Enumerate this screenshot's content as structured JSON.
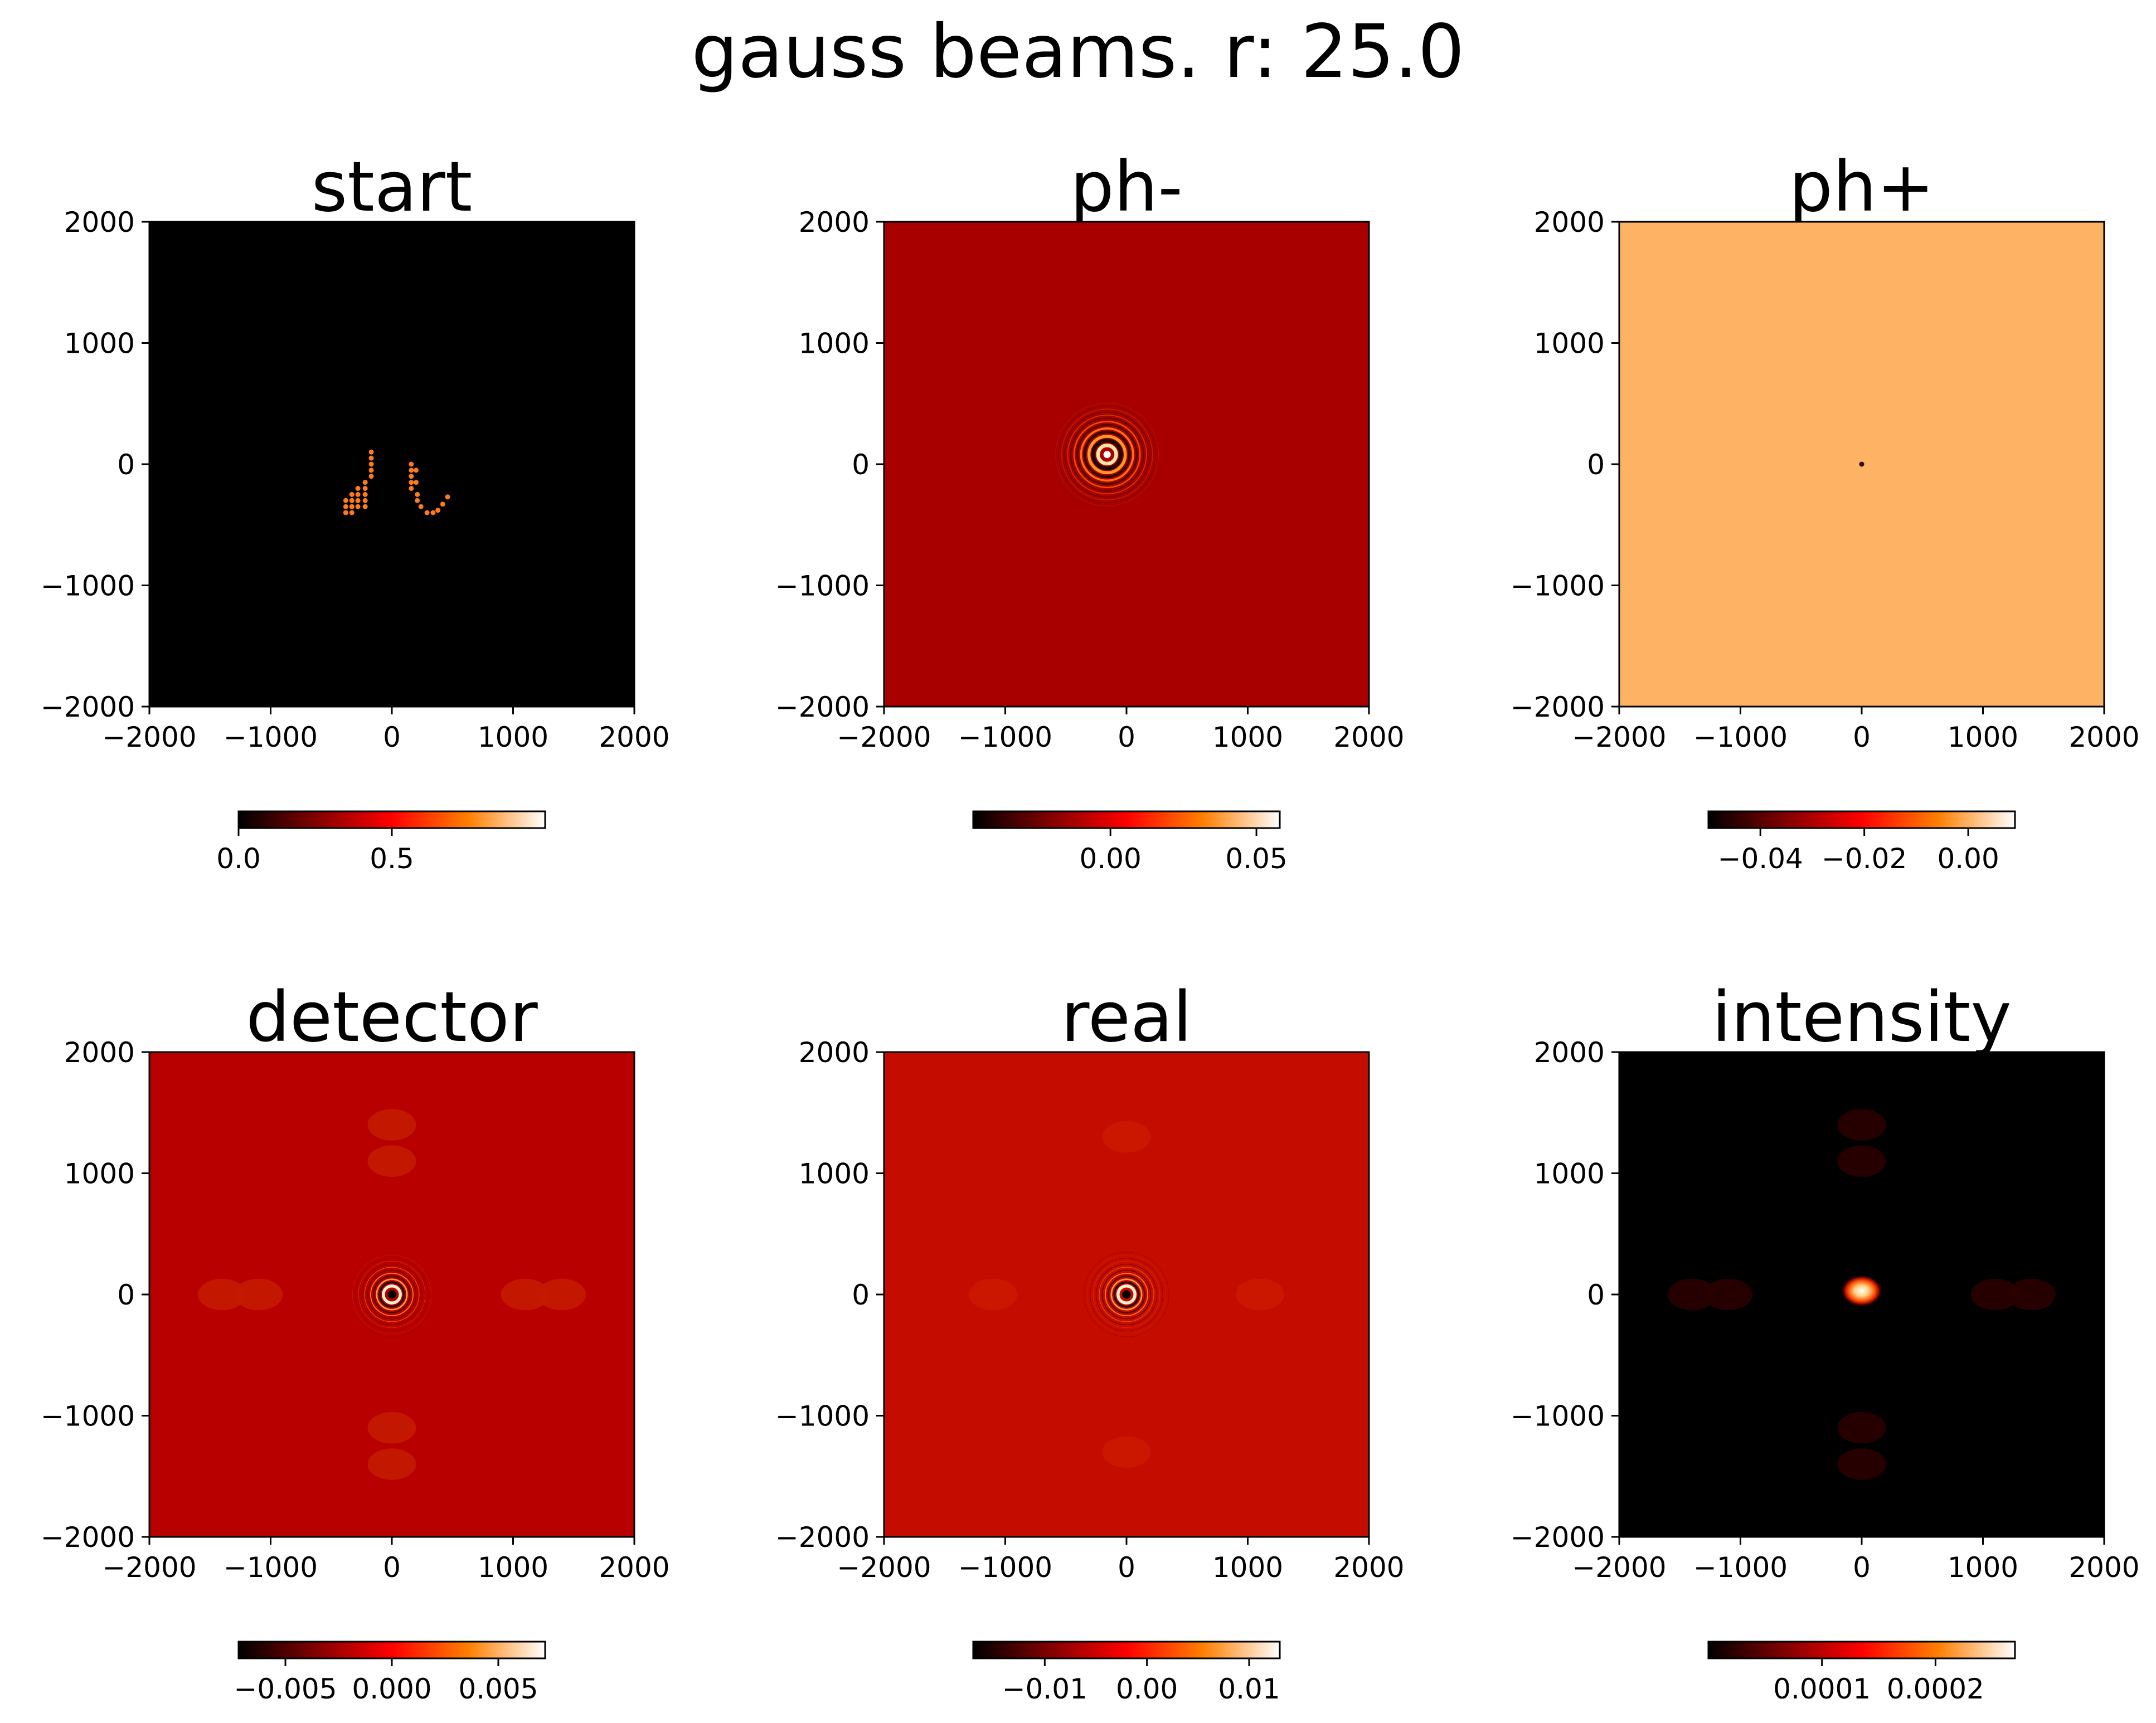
{
  "figure": {
    "suptitle": "gauss beams. r: 25.0",
    "colormap": "afmhot"
  },
  "chart_data": [
    {
      "type": "heatmap",
      "title": "start",
      "xlim": [
        -2000,
        2000
      ],
      "ylim": [
        -2000,
        2000
      ],
      "xticks": [
        "−2000",
        "−1000",
        "0",
        "1000",
        "2000"
      ],
      "yticks": [
        "2000",
        "1000",
        "0",
        "−1000",
        "−2000"
      ],
      "background_color": "#000000",
      "colorbar": {
        "range": [
          0.0,
          1.0
        ],
        "ticks": [
          0.0,
          0.5
        ],
        "tick_labels": [
          "0.0",
          "0.5"
        ]
      },
      "features": {
        "dots": [
          [
            -170,
            100
          ],
          [
            -170,
            50
          ],
          [
            -170,
            0
          ],
          [
            -170,
            -50
          ],
          [
            -170,
            -100
          ],
          [
            -220,
            -150
          ],
          [
            -220,
            -200
          ],
          [
            -220,
            -250
          ],
          [
            -220,
            -300
          ],
          [
            -220,
            -350
          ],
          [
            -280,
            -200
          ],
          [
            -280,
            -250
          ],
          [
            -280,
            -300
          ],
          [
            -280,
            -350
          ],
          [
            -330,
            -250
          ],
          [
            -330,
            -300
          ],
          [
            -330,
            -350
          ],
          [
            -330,
            -400
          ],
          [
            -380,
            -300
          ],
          [
            -380,
            -350
          ],
          [
            -380,
            -400
          ],
          [
            160,
            0
          ],
          [
            160,
            -50
          ],
          [
            160,
            -100
          ],
          [
            160,
            -150
          ],
          [
            160,
            -200
          ],
          [
            210,
            -250
          ],
          [
            210,
            -300
          ],
          [
            240,
            -350
          ],
          [
            290,
            -400
          ],
          [
            340,
            -400
          ],
          [
            380,
            -380
          ],
          [
            420,
            -330
          ],
          [
            460,
            -270
          ],
          [
            200,
            -50
          ],
          [
            200,
            -150
          ]
        ],
        "dot_color": "#ff7a1a"
      }
    },
    {
      "type": "heatmap",
      "title": "ph-",
      "xlim": [
        -2000,
        2000
      ],
      "ylim": [
        -2000,
        2000
      ],
      "xticks": [
        "−2000",
        "−1000",
        "0",
        "1000",
        "2000"
      ],
      "yticks": [
        "2000",
        "1000",
        "0",
        "−1000",
        "−2000"
      ],
      "background_color": "#a80000",
      "colorbar": {
        "range": [
          -0.047,
          0.058
        ],
        "ticks": [
          0.0,
          0.05
        ],
        "tick_labels": [
          "0.00",
          "0.05"
        ]
      },
      "features": {
        "rings_center": [
          -160,
          80
        ],
        "rings": [
          {
            "r": 30,
            "color": "#ffffff",
            "width": 0
          },
          {
            "r": 75,
            "color": "#ffe6a8",
            "width": 30
          },
          {
            "r": 115,
            "color": "#200000",
            "width": 30
          },
          {
            "r": 150,
            "color": "#ff9a20",
            "width": 25
          },
          {
            "r": 185,
            "color": "#300000",
            "width": 20
          },
          {
            "r": 215,
            "color": "#ff7010",
            "width": 17
          },
          {
            "r": 245,
            "color": "#4a0000",
            "width": 14
          },
          {
            "r": 272,
            "color": "#e85000",
            "width": 12
          },
          {
            "r": 300,
            "color": "#600000",
            "width": 10
          },
          {
            "r": 325,
            "color": "#d03000",
            "width": 9
          },
          {
            "r": 350,
            "color": "#700000",
            "width": 8
          },
          {
            "r": 375,
            "color": "#c02000",
            "width": 7
          },
          {
            "r": 400,
            "color": "#800000",
            "width": 6
          },
          {
            "r": 425,
            "color": "#b81000",
            "width": 5
          }
        ]
      }
    },
    {
      "type": "heatmap",
      "title": "ph+",
      "xlim": [
        -2000,
        2000
      ],
      "ylim": [
        -2000,
        2000
      ],
      "xticks": [
        "−2000",
        "−1000",
        "0",
        "1000",
        "2000"
      ],
      "yticks": [
        "2000",
        "1000",
        "0",
        "−1000",
        "−2000"
      ],
      "background_color": "#fdb264",
      "colorbar": {
        "range": [
          -0.05,
          0.009
        ],
        "ticks": [
          -0.04,
          -0.02,
          0.0
        ],
        "tick_labels": [
          "−0.04",
          "−0.02",
          "0.00"
        ]
      },
      "features": {
        "dots": [
          [
            0,
            0
          ]
        ],
        "dot_color": "#300000"
      }
    },
    {
      "type": "heatmap",
      "title": "detector",
      "xlim": [
        -2000,
        2000
      ],
      "ylim": [
        -2000,
        2000
      ],
      "xticks": [
        "−2000",
        "−1000",
        "0",
        "1000",
        "2000"
      ],
      "yticks": [
        "2000",
        "1000",
        "0",
        "−1000",
        "−2000"
      ],
      "background_color": "#b80000",
      "colorbar": {
        "range": [
          -0.0072,
          0.0072
        ],
        "ticks": [
          -0.005,
          0.0,
          0.005
        ],
        "tick_labels": [
          "−0.005",
          "0.000",
          "0.005"
        ]
      },
      "features": {
        "rings_center": [
          0,
          0
        ],
        "rings": [
          {
            "r": 35,
            "color": "#000000",
            "width": 0
          },
          {
            "r": 70,
            "color": "#fff0d0",
            "width": 25
          },
          {
            "r": 100,
            "color": "#200000",
            "width": 15
          },
          {
            "r": 125,
            "color": "#ffa040",
            "width": 12
          },
          {
            "r": 150,
            "color": "#400000",
            "width": 10
          },
          {
            "r": 175,
            "color": "#ff7a20",
            "width": 8
          },
          {
            "r": 200,
            "color": "#600000",
            "width": 7
          },
          {
            "r": 225,
            "color": "#e05000",
            "width": 6
          },
          {
            "r": 250,
            "color": "#800000",
            "width": 5
          },
          {
            "r": 275,
            "color": "#d03000",
            "width": 4
          },
          {
            "r": 300,
            "color": "#900000",
            "width": 4
          },
          {
            "r": 325,
            "color": "#c82000",
            "width": 3
          },
          {
            "r": 350,
            "color": "#a00000",
            "width": 3
          }
        ],
        "side_lobes": [
          [
            -1400,
            0
          ],
          [
            -1100,
            0
          ],
          [
            1100,
            0
          ],
          [
            1400,
            0
          ],
          [
            0,
            1100
          ],
          [
            0,
            1400
          ],
          [
            0,
            -1100
          ],
          [
            0,
            -1400
          ]
        ],
        "lobe_color": "#c41a00"
      }
    },
    {
      "type": "heatmap",
      "title": "real",
      "xlim": [
        -2000,
        2000
      ],
      "ylim": [
        -2000,
        2000
      ],
      "xticks": [
        "−2000",
        "−1000",
        "0",
        "1000",
        "2000"
      ],
      "yticks": [
        "2000",
        "1000",
        "0",
        "−1000",
        "−2000"
      ],
      "background_color": "#c40c00",
      "colorbar": {
        "range": [
          -0.017,
          0.013
        ],
        "ticks": [
          -0.01,
          0.0,
          0.01
        ],
        "tick_labels": [
          "−0.01",
          "0.00",
          "0.01"
        ]
      },
      "features": {
        "rings_center": [
          0,
          0
        ],
        "rings": [
          {
            "r": 35,
            "color": "#000000",
            "width": 0
          },
          {
            "r": 70,
            "color": "#fff0d0",
            "width": 25
          },
          {
            "r": 100,
            "color": "#200000",
            "width": 15
          },
          {
            "r": 125,
            "color": "#ffa040",
            "width": 12
          },
          {
            "r": 150,
            "color": "#400000",
            "width": 10
          },
          {
            "r": 175,
            "color": "#ff7a20",
            "width": 8
          },
          {
            "r": 200,
            "color": "#600000",
            "width": 7
          },
          {
            "r": 225,
            "color": "#e05000",
            "width": 6
          },
          {
            "r": 250,
            "color": "#800000",
            "width": 5
          },
          {
            "r": 275,
            "color": "#d83000",
            "width": 4
          },
          {
            "r": 300,
            "color": "#900000",
            "width": 4
          },
          {
            "r": 325,
            "color": "#d02000",
            "width": 3
          },
          {
            "r": 350,
            "color": "#a00000",
            "width": 3
          }
        ],
        "side_lobes": [
          [
            -1100,
            0
          ],
          [
            1100,
            0
          ],
          [
            0,
            1300
          ],
          [
            0,
            -1300
          ]
        ],
        "lobe_color": "#cc1800"
      }
    },
    {
      "type": "heatmap",
      "title": "intensity",
      "xlim": [
        -2000,
        2000
      ],
      "ylim": [
        -2000,
        2000
      ],
      "xticks": [
        "−2000",
        "−1000",
        "0",
        "1000",
        "2000"
      ],
      "yticks": [
        "2000",
        "1000",
        "0",
        "−1000",
        "−2000"
      ],
      "background_color": "#000000",
      "colorbar": {
        "range": [
          0.0,
          0.00027
        ],
        "ticks": [
          0.0001,
          0.0002
        ],
        "tick_labels": [
          "0.0001",
          "0.0002"
        ]
      },
      "features": {
        "blob": {
          "center": [
            0,
            30
          ],
          "rx": 130,
          "ry": 100
        },
        "side_lobes": [
          [
            -1400,
            0
          ],
          [
            -1100,
            0
          ],
          [
            1100,
            0
          ],
          [
            1400,
            0
          ],
          [
            0,
            1100
          ],
          [
            0,
            1400
          ],
          [
            0,
            -1100
          ],
          [
            0,
            -1400
          ]
        ],
        "lobe_color": "#2a0000"
      }
    }
  ]
}
